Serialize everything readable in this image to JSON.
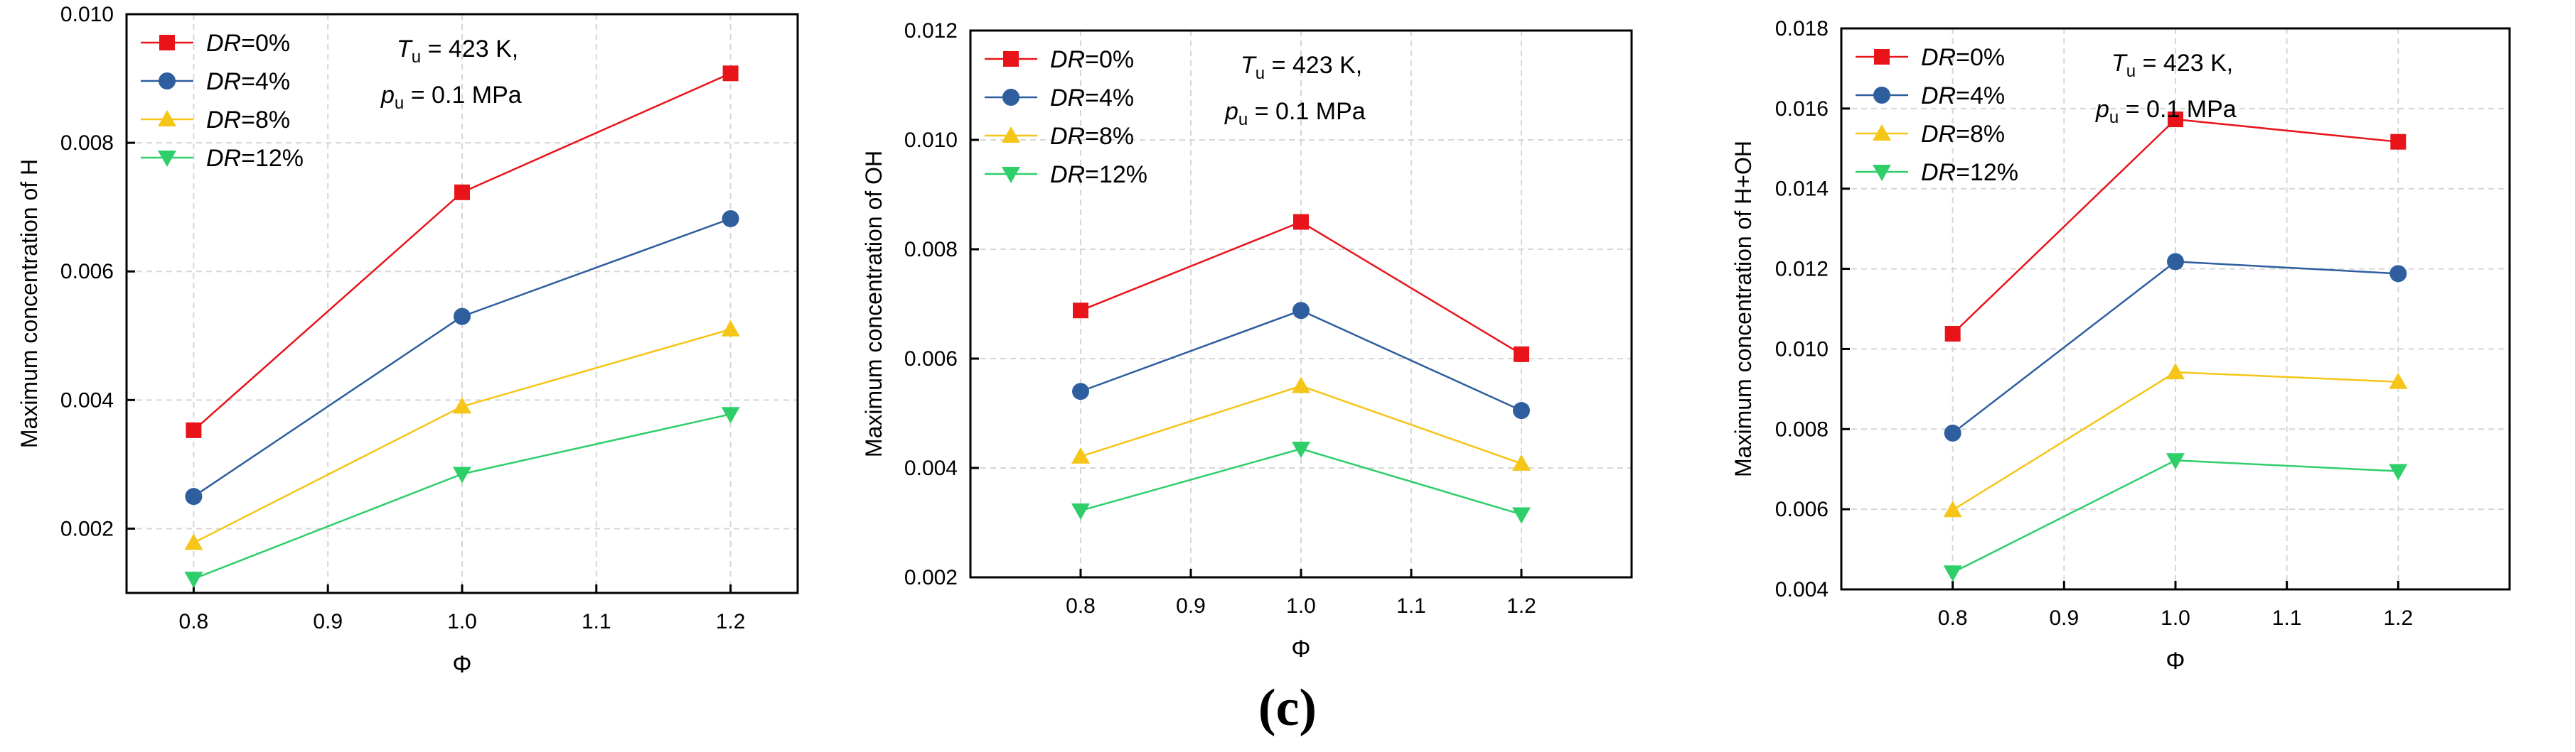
{
  "figure_label": "(c)",
  "chart_data": [
    {
      "type": "line",
      "title": "",
      "xlabel": "Φ",
      "ylabel": "Maximum concentration of H",
      "x": [
        0.8,
        1.0,
        1.2
      ],
      "xlim": [
        0.75,
        1.25
      ],
      "ylim": [
        0.001,
        0.01
      ],
      "xticks": [
        0.8,
        0.9,
        1.0,
        1.1,
        1.2
      ],
      "yticks": [
        0.002,
        0.004,
        0.006,
        0.008,
        0.01
      ],
      "xtick_labels": [
        "0.8",
        "0.9",
        "1.0",
        "1.1",
        "1.2"
      ],
      "ytick_labels": [
        "0.002",
        "0.004",
        "0.006",
        "0.008",
        "0.010"
      ],
      "grid": true,
      "legend_position": "top-left",
      "annotation": {
        "t_sym": "T",
        "t_sub": "u",
        "t_rest": " = 423 K,",
        "p_sym": "p",
        "p_sub": "u",
        "p_rest": " = 0.1 MPa"
      },
      "series": [
        {
          "prefix": "DR",
          "suffix": "=0%",
          "color": "#e8141a",
          "marker": "square",
          "values": [
            0.00353,
            0.00723,
            0.00908
          ]
        },
        {
          "prefix": "DR",
          "suffix": "=4%",
          "color": "#2e5e9e",
          "marker": "circle",
          "values": [
            0.0025,
            0.0053,
            0.00682
          ]
        },
        {
          "prefix": "DR",
          "suffix": "=8%",
          "color": "#f5c518",
          "marker": "triangle-up",
          "values": [
            0.00178,
            0.0039,
            0.0051
          ]
        },
        {
          "prefix": "DR",
          "suffix": "=12%",
          "color": "#2ecf6a",
          "marker": "triangle-down",
          "values": [
            0.00122,
            0.00285,
            0.00378
          ]
        }
      ]
    },
    {
      "type": "line",
      "title": "",
      "xlabel": "Φ",
      "ylabel": "Maximum concentration of OH",
      "x": [
        0.8,
        1.0,
        1.2
      ],
      "xlim": [
        0.7,
        1.3
      ],
      "ylim": [
        0.002,
        0.012
      ],
      "xticks": [
        0.8,
        0.9,
        1.0,
        1.1,
        1.2
      ],
      "yticks": [
        0.002,
        0.004,
        0.006,
        0.008,
        0.01,
        0.012
      ],
      "xtick_labels": [
        "0.8",
        "0.9",
        "1.0",
        "1.1",
        "1.2"
      ],
      "ytick_labels": [
        "0.002",
        "0.004",
        "0.006",
        "0.008",
        "0.010",
        "0.012"
      ],
      "grid": true,
      "legend_position": "top-left",
      "annotation": {
        "t_sym": "T",
        "t_sub": "u",
        "t_rest": " = 423 K,",
        "p_sym": "p",
        "p_sub": "u",
        "p_rest": " = 0.1 MPa"
      },
      "series": [
        {
          "prefix": "DR",
          "suffix": "=0%",
          "color": "#e8141a",
          "marker": "square",
          "values": [
            0.00688,
            0.0085,
            0.00608
          ]
        },
        {
          "prefix": "DR",
          "suffix": "=4%",
          "color": "#2e5e9e",
          "marker": "circle",
          "values": [
            0.0054,
            0.00688,
            0.00505
          ]
        },
        {
          "prefix": "DR",
          "suffix": "=8%",
          "color": "#f5c518",
          "marker": "triangle-up",
          "values": [
            0.00421,
            0.0055,
            0.00408
          ]
        },
        {
          "prefix": "DR",
          "suffix": "=12%",
          "color": "#2ecf6a",
          "marker": "triangle-down",
          "values": [
            0.00322,
            0.00435,
            0.00315
          ]
        }
      ]
    },
    {
      "type": "line",
      "title": "",
      "xlabel": "Φ",
      "ylabel": "Maximum concentration of H+OH",
      "x": [
        0.8,
        1.0,
        1.2
      ],
      "xlim": [
        0.7,
        1.3
      ],
      "ylim": [
        0.004,
        0.018
      ],
      "xticks": [
        0.8,
        0.9,
        1.0,
        1.1,
        1.2
      ],
      "yticks": [
        0.004,
        0.006,
        0.008,
        0.01,
        0.012,
        0.014,
        0.016,
        0.018
      ],
      "xtick_labels": [
        "0.8",
        "0.9",
        "1.0",
        "1.1",
        "1.2"
      ],
      "ytick_labels": [
        "0.004",
        "0.006",
        "0.008",
        "0.010",
        "0.012",
        "0.014",
        "0.016",
        "0.018"
      ],
      "grid": true,
      "legend_position": "top-left",
      "annotation": {
        "t_sym": "T",
        "t_sub": "u",
        "t_rest": " = 423 K,",
        "p_sym": "p",
        "p_sub": "u",
        "p_rest": " = 0.1 MPa"
      },
      "series": [
        {
          "prefix": "DR",
          "suffix": "=0%",
          "color": "#e8141a",
          "marker": "square",
          "values": [
            0.01038,
            0.01573,
            0.01517
          ]
        },
        {
          "prefix": "DR",
          "suffix": "=4%",
          "color": "#2e5e9e",
          "marker": "circle",
          "values": [
            0.0079,
            0.01218,
            0.01188
          ]
        },
        {
          "prefix": "DR",
          "suffix": "=8%",
          "color": "#f5c518",
          "marker": "triangle-up",
          "values": [
            0.00598,
            0.00942,
            0.00918
          ]
        },
        {
          "prefix": "DR",
          "suffix": "=12%",
          "color": "#2ecf6a",
          "marker": "triangle-down",
          "values": [
            0.00442,
            0.00722,
            0.00695
          ]
        }
      ]
    }
  ]
}
